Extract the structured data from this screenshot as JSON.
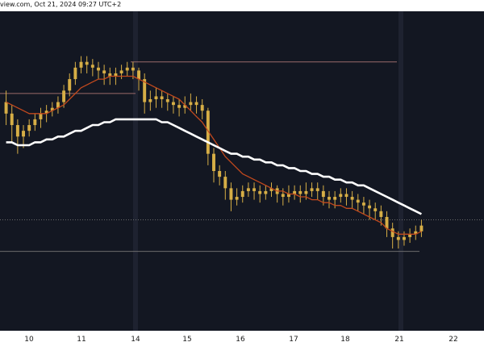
{
  "header": {
    "text": "view.com, Oct 21, 2024 09:27 UTC+2"
  },
  "chart_data": {
    "type": "candlestick",
    "title": "",
    "xlabel": "",
    "ylabel": "",
    "x_ticks": [
      "10",
      "11",
      "14",
      "15",
      "16",
      "17",
      "18",
      "21",
      "22"
    ],
    "ylim": [
      0,
      100
    ],
    "grid": false,
    "legend": "none",
    "colors": {
      "background": "#131722",
      "candles": "#d6ae46",
      "ma_fast": "#c2491d",
      "ma_slow": "#ffffff",
      "resistance_line": "#9a6a6a",
      "support_line": "#6b6b6b"
    },
    "series": [
      {
        "kind": "candles",
        "values": [
          [
            74,
            70,
            78,
            66
          ],
          [
            70,
            66,
            73,
            60
          ],
          [
            66,
            62,
            68,
            56
          ],
          [
            62,
            64,
            66,
            58
          ],
          [
            64,
            66,
            68,
            62
          ],
          [
            66,
            68,
            70,
            64
          ],
          [
            68,
            70,
            72,
            65
          ],
          [
            70,
            71,
            73,
            67
          ],
          [
            71,
            72,
            74,
            69
          ],
          [
            72,
            74,
            76,
            70
          ],
          [
            74,
            78,
            80,
            72
          ],
          [
            78,
            82,
            84,
            76
          ],
          [
            82,
            86,
            88,
            80
          ],
          [
            86,
            88,
            90,
            84
          ],
          [
            88,
            87,
            90,
            84
          ],
          [
            87,
            86,
            89,
            83
          ],
          [
            86,
            85,
            88,
            82
          ],
          [
            85,
            84,
            87,
            80
          ],
          [
            84,
            83,
            86,
            80
          ],
          [
            83,
            84,
            86,
            80
          ],
          [
            84,
            85,
            87,
            82
          ],
          [
            85,
            86,
            88,
            83
          ],
          [
            86,
            85,
            88,
            82
          ],
          [
            85,
            82,
            86,
            78
          ],
          [
            82,
            74,
            84,
            70
          ],
          [
            74,
            75,
            78,
            71
          ],
          [
            75,
            76,
            79,
            72
          ],
          [
            76,
            75,
            78,
            72
          ],
          [
            75,
            74,
            77,
            71
          ],
          [
            74,
            73,
            76,
            70
          ],
          [
            73,
            72,
            75,
            69
          ],
          [
            72,
            73,
            76,
            70
          ],
          [
            73,
            74,
            77,
            71
          ],
          [
            74,
            73,
            76,
            70
          ],
          [
            73,
            71,
            75,
            68
          ],
          [
            71,
            56,
            72,
            52
          ],
          [
            56,
            50,
            58,
            46
          ],
          [
            50,
            48,
            52,
            45
          ],
          [
            48,
            44,
            50,
            40
          ],
          [
            44,
            40,
            46,
            36
          ],
          [
            40,
            41,
            44,
            38
          ],
          [
            41,
            43,
            45,
            39
          ],
          [
            43,
            44,
            46,
            41
          ],
          [
            44,
            43,
            46,
            40
          ],
          [
            43,
            42,
            45,
            39
          ],
          [
            42,
            43,
            45,
            40
          ],
          [
            43,
            44,
            46,
            41
          ],
          [
            44,
            42,
            45,
            39
          ],
          [
            42,
            41,
            44,
            38
          ],
          [
            41,
            42,
            45,
            39
          ],
          [
            42,
            43,
            45,
            40
          ],
          [
            43,
            42,
            45,
            39
          ],
          [
            42,
            43,
            46,
            40
          ],
          [
            43,
            44,
            46,
            41
          ],
          [
            44,
            43,
            46,
            40
          ],
          [
            43,
            41,
            45,
            38
          ],
          [
            41,
            40,
            43,
            37
          ],
          [
            40,
            41,
            43,
            37
          ],
          [
            41,
            42,
            44,
            39
          ],
          [
            42,
            41,
            44,
            38
          ],
          [
            41,
            40,
            43,
            37
          ],
          [
            40,
            39,
            42,
            36
          ],
          [
            39,
            38,
            41,
            35
          ],
          [
            38,
            37,
            40,
            33
          ],
          [
            37,
            36,
            39,
            33
          ],
          [
            36,
            34,
            38,
            31
          ],
          [
            34,
            30,
            36,
            27
          ],
          [
            30,
            27,
            32,
            23
          ],
          [
            27,
            26,
            29,
            23
          ],
          [
            26,
            27,
            29,
            24
          ],
          [
            27,
            28,
            30,
            25
          ],
          [
            28,
            29,
            31,
            26
          ],
          [
            29,
            31,
            33,
            27
          ]
        ],
        "value_order": [
          "open",
          "close",
          "high",
          "low"
        ]
      },
      {
        "kind": "line",
        "values": [
          74,
          73,
          72,
          71,
          70,
          70,
          70,
          70,
          71,
          72,
          73,
          75,
          77,
          79,
          80,
          81,
          82,
          82,
          83,
          83,
          83,
          83,
          83,
          82,
          81,
          80,
          79,
          78,
          77,
          76,
          75,
          73,
          71,
          69,
          67,
          64,
          61,
          58,
          55,
          53,
          51,
          49,
          48,
          47,
          46,
          45,
          44,
          43,
          43,
          42,
          42,
          41,
          41,
          40,
          40,
          39,
          39,
          38,
          38,
          37,
          37,
          36,
          35,
          34,
          33,
          32,
          30,
          29,
          28,
          28,
          28,
          28,
          29
        ]
      },
      {
        "kind": "line",
        "values": [
          60,
          60,
          59,
          59,
          59,
          60,
          60,
          61,
          61,
          62,
          62,
          63,
          64,
          64,
          65,
          66,
          66,
          67,
          67,
          68,
          68,
          68,
          68,
          68,
          68,
          68,
          68,
          67,
          67,
          66,
          65,
          64,
          63,
          62,
          61,
          60,
          59,
          58,
          57,
          56,
          56,
          55,
          55,
          54,
          54,
          53,
          53,
          52,
          52,
          51,
          51,
          50,
          50,
          49,
          49,
          48,
          48,
          47,
          47,
          46,
          46,
          45,
          45,
          44,
          43,
          42,
          41,
          40,
          39,
          38,
          37,
          36,
          35
        ]
      }
    ],
    "horizontal_lines": [
      {
        "name": "",
        "y": 88
      },
      {
        "name": "",
        "y": 77
      },
      {
        "name": "",
        "y": 33
      },
      {
        "name": "",
        "y": 22
      }
    ]
  }
}
